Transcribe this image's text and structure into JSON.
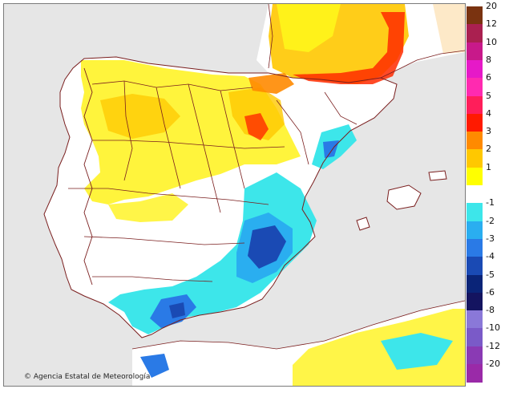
{
  "map": {
    "credit": "Agencia Estatal de Meteorología",
    "credit_symbol": "©",
    "land_color": "#ffffff",
    "sea_color": "#e6e6e6",
    "border_color": "#7a1e1e"
  },
  "legend": {
    "items": [
      {
        "label": "20",
        "color": "#7a3310"
      },
      {
        "label": "12",
        "color": "#aa2050"
      },
      {
        "label": "10",
        "color": "#c8198a"
      },
      {
        "label": "8",
        "color": "#e619c8"
      },
      {
        "label": "6",
        "color": "#ff2ab0"
      },
      {
        "label": "5",
        "color": "#ff1e5a"
      },
      {
        "label": "4",
        "color": "#ff1a00"
      },
      {
        "label": "3",
        "color": "#ff8a00"
      },
      {
        "label": "2",
        "color": "#ffc800"
      },
      {
        "label": "1",
        "color": "#ffff00"
      },
      {
        "label": "",
        "color": "#ffffff"
      },
      {
        "label": "-1",
        "color": "#3de6ea"
      },
      {
        "label": "-2",
        "color": "#2aaef0"
      },
      {
        "label": "-3",
        "color": "#2a7ae6"
      },
      {
        "label": "-4",
        "color": "#1a4ab4"
      },
      {
        "label": "-5",
        "color": "#0a2478"
      },
      {
        "label": "-6",
        "color": "#141460"
      },
      {
        "label": "-8",
        "color": "#8a78d8"
      },
      {
        "label": "-10",
        "color": "#7a5ac8"
      },
      {
        "label": "-12",
        "color": "#8a3ab4"
      },
      {
        "label": "-20",
        "color": "#9a2aa8"
      }
    ]
  }
}
